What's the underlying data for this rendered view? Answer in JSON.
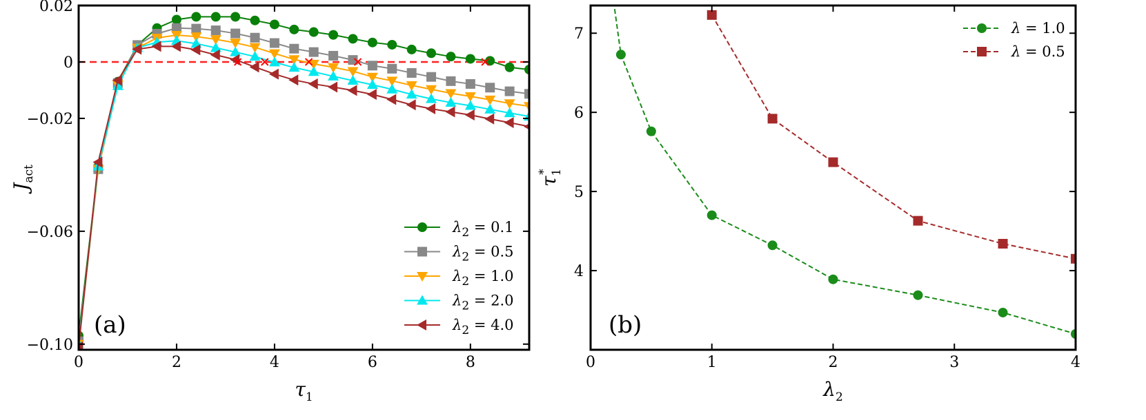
{
  "chart_data": [
    {
      "type": "line",
      "panel_label": "(a)",
      "xlabel": {
        "base": "τ",
        "sub": "1"
      },
      "ylabel": {
        "base": "J",
        "sub": "act"
      },
      "xlim": [
        0,
        9.2
      ],
      "ylim": [
        -0.102,
        0.02
      ],
      "xticks": [
        0,
        2,
        4,
        6,
        8
      ],
      "yticks": [
        0.02,
        0,
        -0.02,
        -0.06,
        -0.1
      ],
      "ytick_labels": [
        "0.02",
        "0",
        "−0.02",
        "−0.06",
        "−0.10"
      ],
      "reference_line": {
        "y": 0,
        "color": "#ff2020",
        "style": "dashed"
      },
      "legend_position": "bottom-right",
      "x": [
        0,
        0.4,
        0.8,
        1.2,
        1.6,
        2.0,
        2.4,
        2.8,
        3.2,
        3.6,
        4.0,
        4.4,
        4.8,
        5.2,
        5.6,
        6.0,
        6.4,
        6.8,
        7.2,
        7.6,
        8.0,
        8.4,
        8.8,
        9.2
      ],
      "series": [
        {
          "name": "λ₂ = 0.1",
          "legend": {
            "var": "λ",
            "sub": "2",
            "val": " = 0.1"
          },
          "color": "#0a800a",
          "marker": "circle",
          "values": [
            -0.097,
            -0.037,
            -0.007,
            0.006,
            0.012,
            0.015,
            0.016,
            0.016,
            0.016,
            0.0147,
            0.0133,
            0.0115,
            0.0106,
            0.0096,
            0.0082,
            0.0069,
            0.0061,
            0.0044,
            0.0031,
            0.0019,
            0.0011,
            0.0004,
            -0.0019,
            -0.0027
          ]
        },
        {
          "name": "λ₂ = 0.5",
          "legend": {
            "var": "λ",
            "sub": "2",
            "val": " = 0.5"
          },
          "color": "#888888",
          "marker": "square",
          "values": [
            -0.099,
            -0.038,
            -0.0075,
            0.006,
            0.01,
            0.012,
            0.0118,
            0.0112,
            0.0101,
            0.0086,
            0.0067,
            0.0047,
            0.0035,
            0.0022,
            0.0007,
            -0.0013,
            -0.0024,
            -0.0039,
            -0.0053,
            -0.0068,
            -0.0078,
            -0.0091,
            -0.0104,
            -0.0113
          ]
        },
        {
          "name": "λ₂ = 1.0",
          "legend": {
            "var": "λ",
            "sub": "2",
            "val": " = 1.0"
          },
          "color": "#ffa500",
          "marker": "triangle-down",
          "values": [
            -0.1,
            -0.038,
            -0.008,
            0.005,
            0.0085,
            0.0095,
            0.009,
            0.008,
            0.0068,
            0.0052,
            0.003,
            0.0009,
            -0.0007,
            -0.0019,
            -0.0033,
            -0.0053,
            -0.0067,
            -0.0083,
            -0.0097,
            -0.0111,
            -0.0122,
            -0.0134,
            -0.0147,
            -0.0157
          ]
        },
        {
          "name": "λ₂ = 2.0",
          "legend": {
            "var": "λ",
            "sub": "2",
            "val": " = 2.0"
          },
          "color": "#00e8ee",
          "marker": "triangle-up",
          "values": [
            -0.1,
            -0.037,
            -0.0085,
            0.005,
            0.007,
            0.0075,
            0.0065,
            0.005,
            0.0035,
            0.0019,
            -0.0001,
            -0.002,
            -0.0035,
            -0.0051,
            -0.0066,
            -0.0081,
            -0.0097,
            -0.0115,
            -0.0131,
            -0.0144,
            -0.0155,
            -0.0168,
            -0.0181,
            -0.0193
          ]
        },
        {
          "name": "λ₂ = 4.0",
          "legend": {
            "var": "λ",
            "sub": "2",
            "val": " = 4.0"
          },
          "color": "#a52a2a",
          "marker": "triangle-left",
          "values": [
            -0.101,
            -0.0355,
            -0.0065,
            0.0045,
            0.0055,
            0.0055,
            0.0043,
            0.0025,
            0.0008,
            -0.0018,
            -0.0043,
            -0.0064,
            -0.0078,
            -0.0089,
            -0.0101,
            -0.0115,
            -0.0133,
            -0.0152,
            -0.0166,
            -0.0177,
            -0.0188,
            -0.0202,
            -0.0215,
            -0.0229
          ]
        }
      ],
      "crossings": {
        "marker": "x",
        "color": "#ff0000",
        "x": [
          3.25,
          3.8,
          4.7,
          5.7,
          8.3
        ]
      }
    },
    {
      "type": "line",
      "panel_label": "(b)",
      "xlabel": {
        "base": "λ",
        "sub": "2"
      },
      "ylabel": {
        "base": "τ",
        "sub": "1",
        "sup": "*"
      },
      "xlim": [
        0,
        4
      ],
      "ylim": [
        3.0,
        7.35
      ],
      "xticks": [
        0,
        1,
        2,
        3,
        4
      ],
      "yticks": [
        4,
        5,
        6,
        7
      ],
      "legend_position": "top-right",
      "series": [
        {
          "name": "λ = 1.0",
          "legend": {
            "var": "λ",
            "val": " = 1.0"
          },
          "color": "#1a8c1a",
          "marker": "circle",
          "style": "dashed",
          "x": [
            0.19,
            0.25,
            0.5,
            1.0,
            1.5,
            2.0,
            2.7,
            3.4,
            4.0
          ],
          "y": [
            7.4,
            6.73,
            5.76,
            4.7,
            4.32,
            3.89,
            3.69,
            3.47,
            3.2
          ],
          "marker_mask": [
            false,
            true,
            true,
            true,
            true,
            true,
            true,
            true,
            true
          ]
        },
        {
          "name": "λ = 0.5",
          "legend": {
            "var": "λ",
            "val": " = 0.5"
          },
          "color": "#a52a2a",
          "marker": "square",
          "style": "dashed",
          "x": [
            1.0,
            1.5,
            2.0,
            2.7,
            3.4,
            4.0
          ],
          "y": [
            7.23,
            5.92,
            5.37,
            4.63,
            4.34,
            4.15
          ]
        }
      ]
    }
  ]
}
